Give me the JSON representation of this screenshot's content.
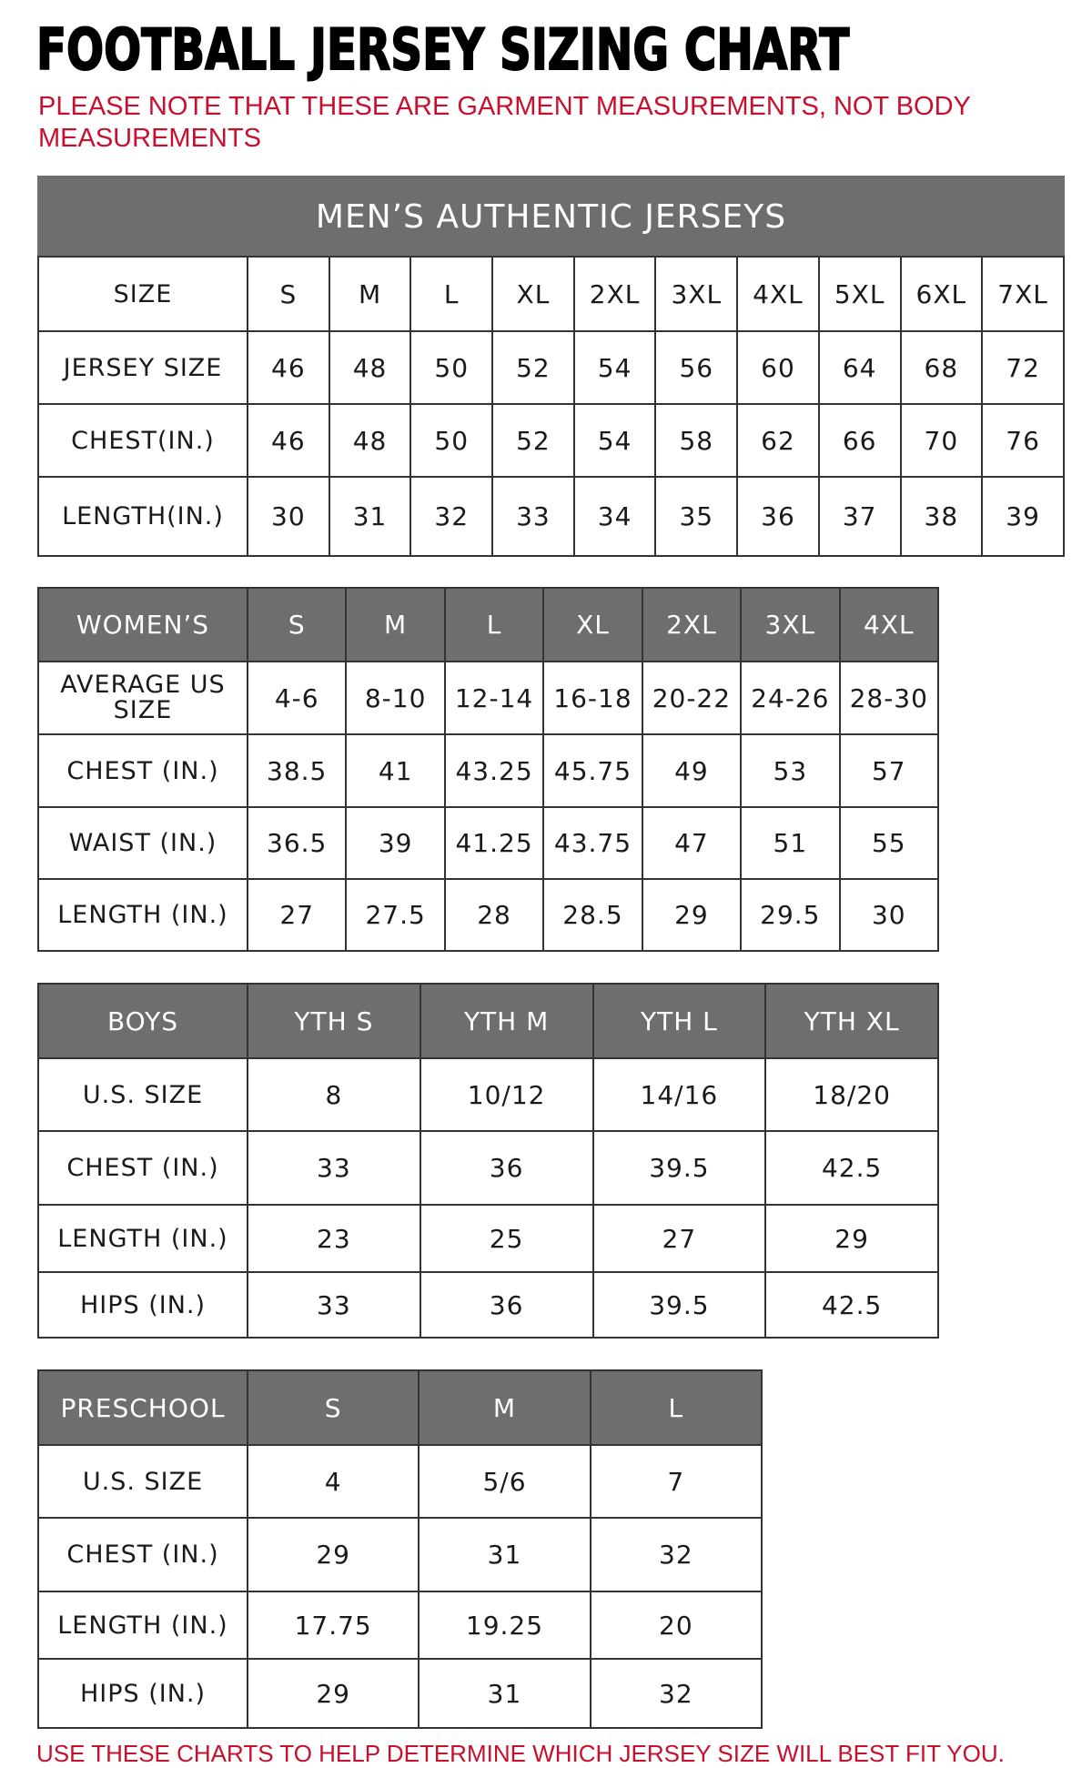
{
  "title": "FOOTBALL JERSEY SIZING CHART",
  "note": "PLEASE NOTE THAT THESE ARE GARMENT MEASUREMENTS, NOT BODY MEASUREMENTS",
  "footer": "USE THESE CHARTS TO HELP DETERMINE WHICH JERSEY SIZE WILL BEST FIT YOU.",
  "colors": {
    "header_bg": "#6e6e6e",
    "accent_red": "#c8102e"
  },
  "mens": {
    "caption": "MEN’S AUTHENTIC JERSEYS",
    "header_label": "SIZE",
    "sizes": [
      "S",
      "M",
      "L",
      "XL",
      "2XL",
      "3XL",
      "4XL",
      "5XL",
      "6XL",
      "7XL"
    ],
    "rows": [
      {
        "label": "JERSEY SIZE",
        "values": [
          "46",
          "48",
          "50",
          "52",
          "54",
          "56",
          "60",
          "64",
          "68",
          "72"
        ]
      },
      {
        "label": "CHEST(IN.)",
        "values": [
          "46",
          "48",
          "50",
          "52",
          "54",
          "58",
          "62",
          "66",
          "70",
          "76"
        ]
      },
      {
        "label": "LENGTH(IN.)",
        "values": [
          "30",
          "31",
          "32",
          "33",
          "34",
          "35",
          "36",
          "37",
          "38",
          "39"
        ]
      }
    ]
  },
  "womens": {
    "header_label": "WOMEN’S",
    "sizes": [
      "S",
      "M",
      "L",
      "XL",
      "2XL",
      "3XL",
      "4XL"
    ],
    "rows": [
      {
        "label": "AVERAGE US SIZE",
        "values": [
          "4-6",
          "8-10",
          "12-14",
          "16-18",
          "20-22",
          "24-26",
          "28-30"
        ]
      },
      {
        "label": "CHEST (IN.)",
        "values": [
          "38.5",
          "41",
          "43.25",
          "45.75",
          "49",
          "53",
          "57"
        ]
      },
      {
        "label": "WAIST (IN.)",
        "values": [
          "36.5",
          "39",
          "41.25",
          "43.75",
          "47",
          "51",
          "55"
        ]
      },
      {
        "label": "LENGTH (IN.)",
        "values": [
          "27",
          "27.5",
          "28",
          "28.5",
          "29",
          "29.5",
          "30"
        ]
      }
    ]
  },
  "boys": {
    "header_label": "BOYS",
    "sizes": [
      "YTH S",
      "YTH M",
      "YTH L",
      "YTH XL"
    ],
    "rows": [
      {
        "label": "U.S. SIZE",
        "values": [
          "8",
          "10/12",
          "14/16",
          "18/20"
        ]
      },
      {
        "label": "CHEST (IN.)",
        "values": [
          "33",
          "36",
          "39.5",
          "42.5"
        ]
      },
      {
        "label": "LENGTH (IN.)",
        "values": [
          "23",
          "25",
          "27",
          "29"
        ]
      },
      {
        "label": "HIPS (IN.)",
        "values": [
          "33",
          "36",
          "39.5",
          "42.5"
        ]
      }
    ]
  },
  "preschool": {
    "header_label": "PRESCHOOL",
    "sizes": [
      "S",
      "M",
      "L"
    ],
    "rows": [
      {
        "label": "U.S. SIZE",
        "values": [
          "4",
          "5/6",
          "7"
        ]
      },
      {
        "label": "CHEST (IN.)",
        "values": [
          "29",
          "31",
          "32"
        ]
      },
      {
        "label": "LENGTH (IN.)",
        "values": [
          "17.75",
          "19.25",
          "20"
        ]
      },
      {
        "label": "HIPS (IN.)",
        "values": [
          "29",
          "31",
          "32"
        ]
      }
    ]
  }
}
